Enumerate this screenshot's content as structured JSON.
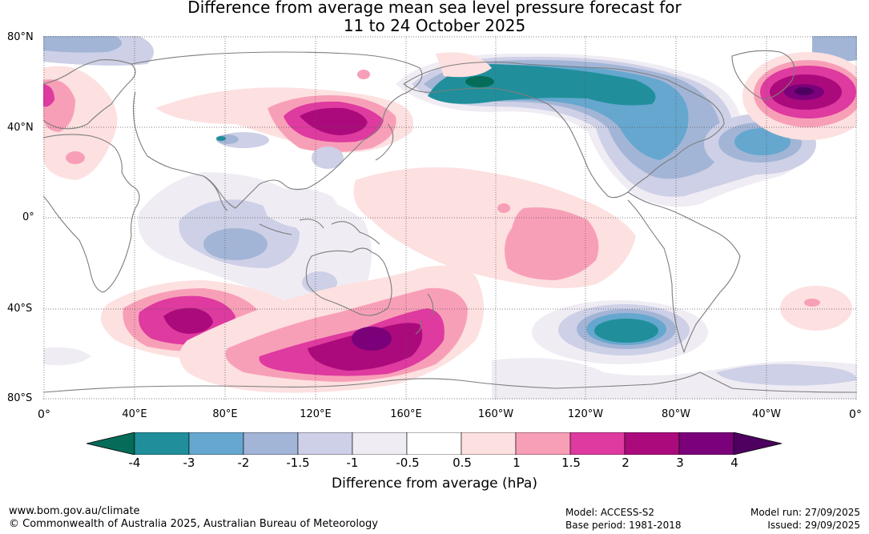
{
  "title_line1": "Difference from average mean sea level pressure forecast for",
  "title_line2": "11 to 24 October 2025",
  "lat_labels": [
    "80°N",
    "40°N",
    "0°",
    "40°S",
    "80°S"
  ],
  "lon_labels": [
    "0°",
    "40°E",
    "80°E",
    "120°E",
    "160°E",
    "160°W",
    "120°W",
    "80°W",
    "40°W",
    "0°"
  ],
  "colorbar": {
    "label": "Difference from average (hPa)",
    "ticks": [
      "-4",
      "-3",
      "-2",
      "-1.5",
      "-1",
      "-0.5",
      "0.5",
      "1",
      "1.5",
      "2",
      "3",
      "4"
    ],
    "colors": [
      "#046c58",
      "#208f9b",
      "#65a7cf",
      "#a3b5d6",
      "#cdd0e6",
      "#f0ecf4",
      "#ffffff",
      "#fde0e0",
      "#f89fb8",
      "#de3a9f",
      "#ab0a7c",
      "#7a017a",
      "#4d0060"
    ]
  },
  "footer": {
    "website": "www.bom.gov.au/climate",
    "copyright": "© Commonwealth of Australia 2025, Australian Bureau of Meteorology",
    "model": "Model: ACCESS-S2",
    "base_period": "Base period: 1981-2018",
    "model_run": "Model run: 27/09/2025",
    "issued": "Issued: 29/09/2025"
  }
}
